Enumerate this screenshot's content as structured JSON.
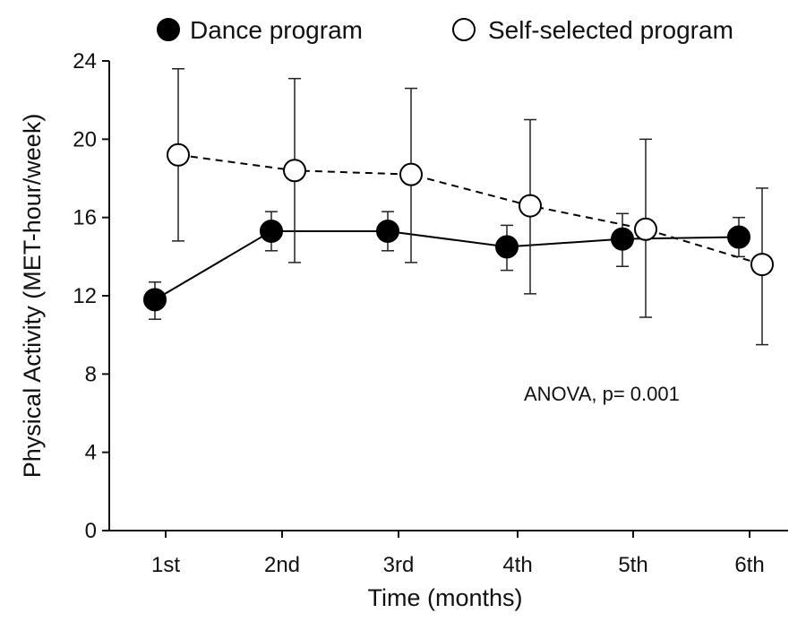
{
  "chart_data": {
    "type": "line",
    "title": "",
    "xlabel": "Time (months)",
    "ylabel": "Physical Activity (MET-hour/week)",
    "categories": [
      "1st",
      "2nd",
      "3rd",
      "4th",
      "5th",
      "6th"
    ],
    "ylim": [
      0,
      24
    ],
    "yticks": [
      0,
      4,
      8,
      12,
      16,
      20,
      24
    ],
    "grid": false,
    "legend": "top",
    "series": [
      {
        "name": "Dance program",
        "marker": "filled-circle",
        "line_style": "solid",
        "color": "#000000",
        "values": [
          11.8,
          15.3,
          15.3,
          14.5,
          14.9,
          15.0
        ],
        "error_low": [
          10.8,
          14.3,
          14.3,
          13.3,
          13.5,
          14.0
        ],
        "error_high": [
          12.7,
          16.3,
          16.3,
          15.6,
          16.2,
          16.0
        ]
      },
      {
        "name": "Self-selected program",
        "marker": "open-circle",
        "line_style": "dashed",
        "color": "#000000",
        "values": [
          19.2,
          18.4,
          18.2,
          16.6,
          15.4,
          13.6
        ],
        "error_low": [
          14.8,
          13.7,
          13.7,
          12.1,
          10.9,
          9.5
        ],
        "error_high": [
          23.6,
          23.1,
          22.6,
          21.0,
          20.0,
          17.5
        ]
      }
    ],
    "annotations": [
      {
        "text": "ANOVA, p= 0.001"
      }
    ]
  }
}
